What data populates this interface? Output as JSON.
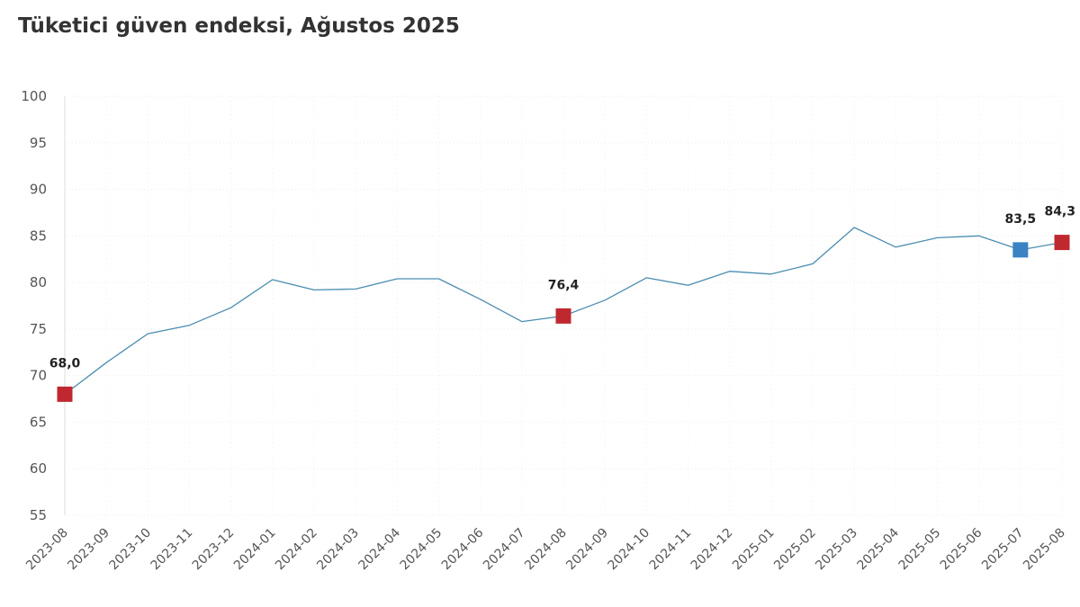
{
  "chart_data": {
    "type": "line",
    "title": "Tüketici güven endeksi, Ağustos 2025",
    "xlabel": "",
    "ylabel": "",
    "ylim": [
      55,
      100
    ],
    "yticks": [
      "100",
      "95",
      "90",
      "85",
      "80",
      "75",
      "70",
      "65",
      "60",
      "55"
    ],
    "grid": true,
    "categories": [
      "2023-08",
      "2023-09",
      "2023-10",
      "2023-11",
      "2023-12",
      "2024-01",
      "2024-02",
      "2024-03",
      "2024-04",
      "2024-05",
      "2024-06",
      "2024-07",
      "2024-08",
      "2024-09",
      "2024-10",
      "2024-11",
      "2024-12",
      "2025-01",
      "2025-02",
      "2025-03",
      "2025-04",
      "2025-05",
      "2025-06",
      "2025-07",
      "2025-08"
    ],
    "series": [
      {
        "values": [
          68.0,
          71.4,
          74.5,
          75.4,
          77.3,
          80.3,
          79.2,
          79.3,
          80.4,
          80.4,
          78.2,
          75.8,
          76.4,
          78.1,
          80.5,
          79.7,
          81.2,
          80.9,
          82.0,
          85.9,
          83.8,
          84.8,
          85.0,
          83.5,
          84.3
        ],
        "color": "#4a8db0"
      }
    ],
    "highlights": [
      {
        "category": "2023-08",
        "value": 68.0,
        "label": "68,0",
        "color": "#c0282f"
      },
      {
        "category": "2024-08",
        "value": 76.4,
        "label": "76,4",
        "color": "#c0282f"
      },
      {
        "category": "2025-07",
        "value": 83.5,
        "label": "83,5",
        "color": "#3a82c4"
      },
      {
        "category": "2025-08",
        "value": 84.3,
        "label": "84,3",
        "color": "#c0282f"
      }
    ]
  }
}
